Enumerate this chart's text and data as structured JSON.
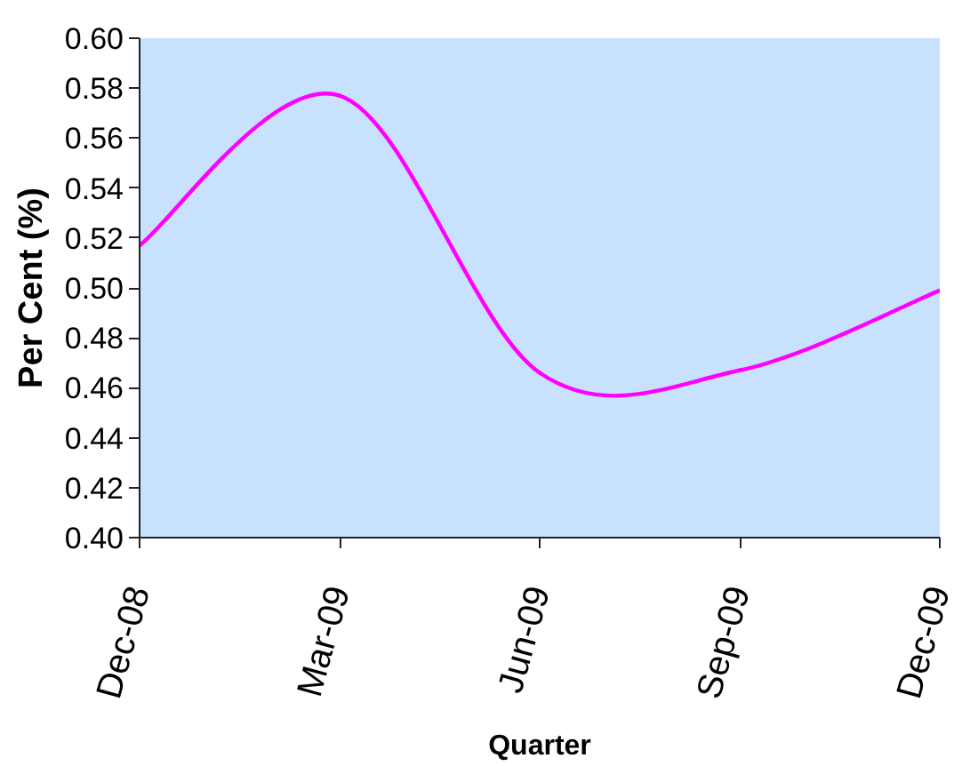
{
  "chart_data": {
    "type": "line",
    "xlabel": "Quarter",
    "ylabel": "Per Cent (%)",
    "categories": [
      "Dec-08",
      "Mar-09",
      "Jun-09",
      "Sep-09",
      "Dec-09"
    ],
    "series": [
      {
        "color": "#ff00ff",
        "values": [
          0.517,
          0.577,
          0.466,
          0.467,
          0.499
        ]
      }
    ],
    "ylim": [
      0.4,
      0.6
    ],
    "yticks": [
      {
        "value": 0.4,
        "label": "0.40"
      },
      0.42,
      0.44,
      0.46,
      0.48,
      {
        "value": 0.5,
        "label": "0.50"
      },
      0.52,
      0.54,
      0.56,
      0.58,
      {
        "value": 0.6,
        "label": "0.60"
      }
    ]
  }
}
